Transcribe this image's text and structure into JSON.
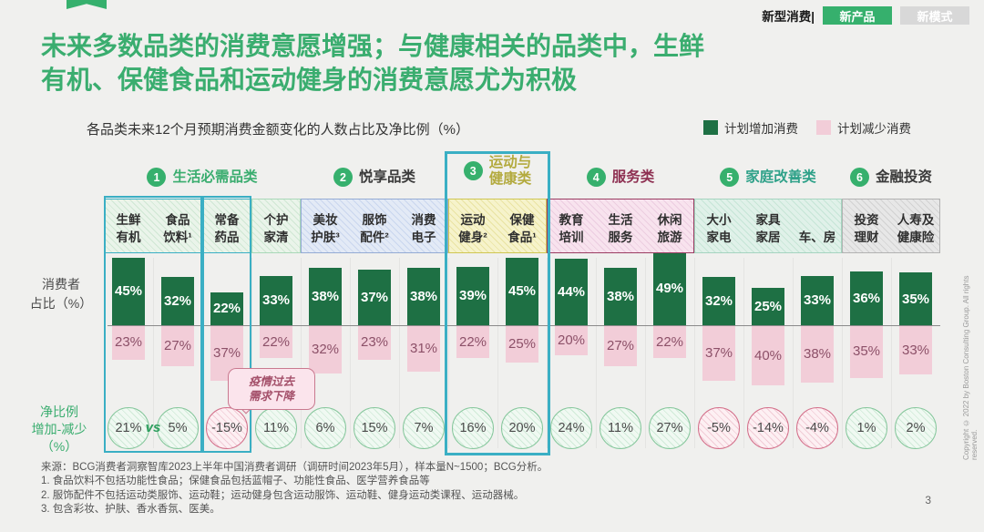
{
  "top_bar": {
    "breadcrumb": "新型消费|",
    "tabs": [
      {
        "label": "新产品",
        "active": true
      },
      {
        "label": "新模式",
        "active": false
      }
    ]
  },
  "title": {
    "line1": "未来多数品类的消费意愿增强；与健康相关的品类中，生鲜",
    "line2": "有机、保健食品和运动健身的消费意愿尤为积极"
  },
  "subtitle": "各品类未来12个月预期消费金额变化的人数占比及净比例（%）",
  "legend": {
    "increase": {
      "label": "计划增加消费",
      "color": "#1e7044"
    },
    "decrease": {
      "label": "计划减少消费",
      "color": "#f2cdd8"
    }
  },
  "axis": {
    "upper": [
      "消费者",
      "占比（%）"
    ],
    "lower": [
      "净比例",
      "增加-减少",
      "（%）"
    ]
  },
  "vs_label": "vs",
  "callout": {
    "line1": "疫情过去",
    "line2": "需求下降"
  },
  "chart_data": {
    "type": "bar",
    "title": "各品类未来12个月预期消费金额变化的人数占比及净比例（%）",
    "legend": [
      "计划增加消费",
      "计划减少消费"
    ],
    "unit": "%",
    "categories": [
      "生鲜有机",
      "食品饮料",
      "常备药品",
      "个护家清",
      "美妆护肤",
      "服饰配件",
      "消费电子",
      "运动健身",
      "保健食品",
      "教育培训",
      "生活服务",
      "休闲旅游",
      "大小家电",
      "家具家居",
      "车、房",
      "投资理财",
      "人寿及健康险"
    ],
    "series": [
      {
        "name": "计划增加消费",
        "values": [
          45,
          32,
          22,
          33,
          38,
          37,
          38,
          39,
          45,
          44,
          38,
          49,
          32,
          25,
          33,
          36,
          35
        ]
      },
      {
        "name": "计划减少消费",
        "values": [
          23,
          27,
          37,
          22,
          32,
          23,
          31,
          22,
          25,
          20,
          27,
          22,
          37,
          40,
          38,
          35,
          33
        ]
      }
    ],
    "net_ratio": [
      21,
      5,
      -15,
      11,
      6,
      15,
      7,
      16,
      20,
      24,
      11,
      27,
      -5,
      -14,
      -4,
      1,
      2
    ],
    "groups": [
      {
        "num": "1",
        "name": "生活必需品类",
        "columns": [
          0,
          3
        ]
      },
      {
        "num": "2",
        "name": "悦享品类",
        "columns": [
          4,
          6
        ]
      },
      {
        "num": "3",
        "name": "运动与健康类",
        "columns": [
          7,
          8
        ]
      },
      {
        "num": "4",
        "name": "服务类",
        "columns": [
          9,
          11
        ]
      },
      {
        "num": "5",
        "name": "家庭改善类",
        "columns": [
          12,
          14
        ]
      },
      {
        "num": "6",
        "name": "金融投资",
        "columns": [
          15,
          16
        ]
      }
    ]
  },
  "column_headers": [
    {
      "lines": [
        "生鲜",
        "有机"
      ]
    },
    {
      "lines": [
        "食品",
        "饮料¹"
      ]
    },
    {
      "lines": [
        "常备",
        "药品"
      ]
    },
    {
      "lines": [
        "个护",
        "家清"
      ]
    },
    {
      "lines": [
        "美妆",
        "护肤³"
      ]
    },
    {
      "lines": [
        "服饰",
        "配件²"
      ]
    },
    {
      "lines": [
        "消费",
        "电子"
      ]
    },
    {
      "lines": [
        "运动",
        "健身²"
      ]
    },
    {
      "lines": [
        "保健",
        "食品¹"
      ]
    },
    {
      "lines": [
        "教育",
        "培训"
      ]
    },
    {
      "lines": [
        "生活",
        "服务"
      ]
    },
    {
      "lines": [
        "休闲",
        "旅游"
      ]
    },
    {
      "lines": [
        "大小",
        "家电"
      ]
    },
    {
      "lines": [
        "家具",
        "家居"
      ]
    },
    {
      "lines": [
        "车、房"
      ]
    },
    {
      "lines": [
        "投资",
        "理财"
      ]
    },
    {
      "lines": [
        "人寿及",
        "健康险"
      ]
    }
  ],
  "header_cells": [
    {
      "cols": [
        0,
        1
      ],
      "theme": "green",
      "border": "#3aafc4",
      "boxed": true
    },
    {
      "cols": [
        2,
        2
      ],
      "theme": "green",
      "border": "#3aafc4",
      "boxed": true
    },
    {
      "cols": [
        3,
        3
      ],
      "theme": "green"
    },
    {
      "cols": [
        4,
        6
      ],
      "theme": "blue"
    },
    {
      "cols": [
        7,
        8
      ],
      "theme": "yellow"
    },
    {
      "cols": [
        9,
        11
      ],
      "theme": "pink"
    },
    {
      "cols": [
        12,
        14
      ],
      "theme": "mint"
    },
    {
      "cols": [
        15,
        16
      ],
      "theme": "gray"
    }
  ],
  "themes": {
    "green": {
      "bg": "#eaf4ea",
      "hatch": "#cfe7d3",
      "border": "#a9d8b8"
    },
    "blue": {
      "bg": "#e3eaf6",
      "hatch": "#c9d6ee",
      "border": "#94abd4"
    },
    "yellow": {
      "bg": "#f6f3cb",
      "hatch": "#e9e3a2",
      "border": "#cfc653"
    },
    "pink": {
      "bg": "#f8e3ee",
      "hatch": "#eccde0",
      "border": "#9b3d62"
    },
    "mint": {
      "bg": "#e0f1e9",
      "hatch": "#c6e5d6",
      "border": "#a5d4c0"
    },
    "gray": {
      "bg": "#e7e7e7",
      "hatch": "#d2d2d2",
      "border": "#b2b2b2"
    }
  },
  "group_labels": [
    {
      "num": "1",
      "lines": [
        "生活必需品类"
      ],
      "color": "#3aad6f",
      "cols": [
        0,
        3
      ]
    },
    {
      "num": "2",
      "lines": [
        "悦享品类"
      ],
      "color": "#3b3b3b",
      "cols": [
        4,
        6
      ]
    },
    {
      "num": "3",
      "lines": [
        "运动与",
        "健康类"
      ],
      "color": "#b3aa3e",
      "cols": [
        7,
        8
      ]
    },
    {
      "num": "4",
      "lines": [
        "服务类"
      ],
      "color": "#8e3052",
      "cols": [
        9,
        11
      ]
    },
    {
      "num": "5",
      "lines": [
        "家庭改善类"
      ],
      "color": "#2fa189",
      "cols": [
        12,
        14
      ]
    },
    {
      "num": "6",
      "lines": [
        "金融投资"
      ],
      "color": "#3b3b3b",
      "cols": [
        15,
        16
      ]
    }
  ],
  "colors": {
    "bar_increase": "#1e7044",
    "bar_decrease": "#f2cdd8",
    "bar_decrease_label": "#8c5068",
    "title_green": "#3aad6f",
    "badge_green": "#36b06d",
    "highlight_box": "#3aafc4",
    "net_positive_border": "#86c79c",
    "net_positive_fill": "#f0f9f2",
    "net_negative_border": "#d36f8a",
    "net_negative_fill": "#fdf0f3",
    "net_text": "#4a4a4a",
    "zero_line": "#8a8a8a"
  },
  "footer": {
    "source": "来源：BCG消费者洞察智库2023上半年中国消费者调研（调研时间2023年5月），样本量N~1500；BCG分析。",
    "notes": [
      "1.   食品饮料不包括功能性食品；保健食品包括蓝帽子、功能性食品、医学营养食品等",
      "2.   服饰配件不包括运动类服饰、运动鞋；运动健身包含运动服饰、运动鞋、健身运动类课程、运动器械。",
      "3.   包含彩妆、护肤、香水香氛、医美。"
    ],
    "page_number": "3"
  },
  "copyright": "Copyright © 2022 by Boston Consulting Group. All rights reserved."
}
